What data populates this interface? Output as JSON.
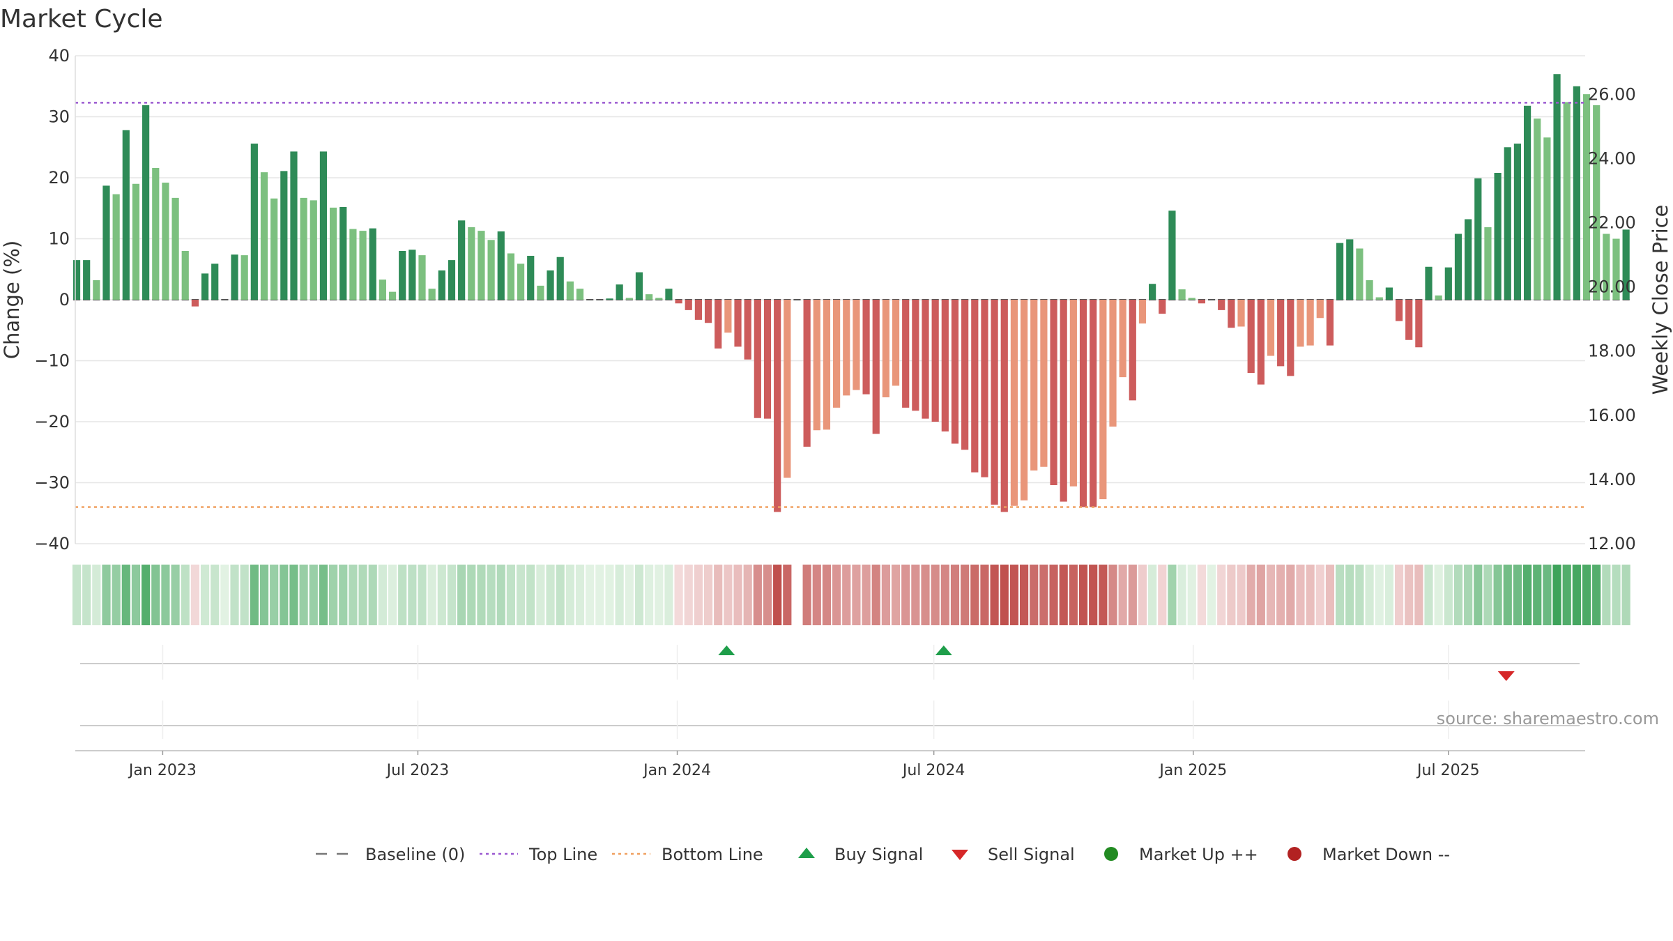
{
  "chart_data": {
    "type": "bar",
    "title": "Market Cycle",
    "ylabel": "Change (%)",
    "y2label": "Weekly Close Price",
    "ylim": [
      -40,
      40
    ],
    "y2lim": [
      12,
      27.2
    ],
    "yticks": [
      -40,
      -30,
      -20,
      -10,
      0,
      10,
      20,
      30,
      40
    ],
    "yticklabels": [
      "−40",
      "−30",
      "−20",
      "−10",
      "0",
      "10",
      "20",
      "30",
      "40"
    ],
    "y2ticks": [
      12,
      14,
      16,
      18,
      20,
      22,
      24,
      26
    ],
    "y2ticklabels": [
      "12.00",
      "14.00",
      "16.00",
      "18.00",
      "20.00",
      "22.00",
      "24.00",
      "26.00"
    ],
    "xlim": [
      "2022-10-31",
      "2025-10-06"
    ],
    "xticks": [
      "2023-01-01",
      "2023-07-01",
      "2024-01-01",
      "2024-07-01",
      "2025-01-01",
      "2025-07-01"
    ],
    "xticklabels": [
      "Jan 2023",
      "Jul 2023",
      "Jan 2024",
      "Jul 2024",
      "Jan 2025",
      "Jul 2025"
    ],
    "start_date": "2022-11-01",
    "week_step_days": 7,
    "values": [
      6.5,
      6.5,
      3.2,
      18.7,
      17.3,
      27.8,
      19.0,
      31.9,
      21.6,
      19.2,
      16.7,
      8.0,
      -1.1,
      4.3,
      5.9,
      0,
      7.4,
      7.3,
      25.6,
      20.9,
      16.6,
      21.1,
      24.3,
      16.7,
      16.3,
      24.3,
      15.1,
      15.2,
      11.6,
      11.3,
      11.7,
      3.3,
      1.3,
      8.0,
      8.2,
      7.3,
      1.8,
      4.8,
      6.5,
      13.0,
      11.9,
      11.3,
      9.8,
      11.2,
      7.6,
      5.9,
      7.2,
      2.3,
      4.8,
      7.0,
      3.0,
      1.8,
      0,
      0,
      0.2,
      2.5,
      0.3,
      4.5,
      0.9,
      0.3,
      1.8,
      -0.6,
      -1.7,
      -3.3,
      -3.8,
      -8.0,
      -5.4,
      -7.7,
      -9.8,
      -19.4,
      -19.5,
      -34.8,
      -29.2,
      0,
      -24.1,
      -21.4,
      -21.3,
      -17.7,
      -15.7,
      -14.8,
      -15.5,
      -22.0,
      -16.0,
      -14.1,
      -17.7,
      -18.2,
      -19.5,
      -20.0,
      -21.6,
      -23.6,
      -24.6,
      -28.3,
      -29.1,
      -33.6,
      -34.8,
      -33.8,
      -32.9,
      -28.0,
      -27.4,
      -30.4,
      -33.1,
      -30.6,
      -34.0,
      -34.0,
      -32.7,
      -20.8,
      -12.7,
      -16.5,
      -3.9,
      2.6,
      -2.3,
      14.6,
      1.7,
      0.3,
      -0.6,
      0,
      -1.7,
      -4.6,
      -4.4,
      -12.0,
      -13.9,
      -9.2,
      -10.9,
      -12.5,
      -7.7,
      -7.5,
      -3.0,
      -7.5,
      9.3,
      9.9,
      8.4,
      3.2,
      0.4,
      2.0,
      -3.5,
      -6.6,
      -7.8,
      5.4,
      0.7,
      5.3,
      10.8,
      13.2,
      19.9,
      11.9,
      20.8,
      25.0,
      25.6,
      31.8,
      29.7,
      26.6,
      37.0,
      32.4,
      35.0,
      33.7,
      31.9,
      10.8,
      10.0,
      11.5
    ],
    "top_line": 32.3,
    "bottom_line": -34.0,
    "buy_signals": [
      "2024-02-05",
      "2024-07-08"
    ],
    "sell_signals": [
      "2025-08-11"
    ],
    "legend": [
      {
        "label": "Baseline (0)",
        "symbol": "dash",
        "color": "#777777"
      },
      {
        "label": "Top Line",
        "symbol": "dot",
        "color": "#9b59d0"
      },
      {
        "label": "Bottom Line",
        "symbol": "dot",
        "color": "#f0a060"
      },
      {
        "label": "Buy Signal",
        "symbol": "triangle-up",
        "color": "#1e9e4a"
      },
      {
        "label": "Sell Signal",
        "symbol": "triangle-down",
        "color": "#d62728"
      },
      {
        "label": "Market Up ++",
        "symbol": "circle",
        "color": "#228b22"
      },
      {
        "label": "Market Down --",
        "symbol": "circle",
        "color": "#b22222"
      }
    ],
    "legend_position": "bottom",
    "grid": true,
    "colors": {
      "up_strong": "#2e8b57",
      "up_light": "#7cc07f",
      "down_strong": "#cd5c5c",
      "down_light": "#e9967a"
    }
  },
  "source_text": "source: sharemaestro.com"
}
